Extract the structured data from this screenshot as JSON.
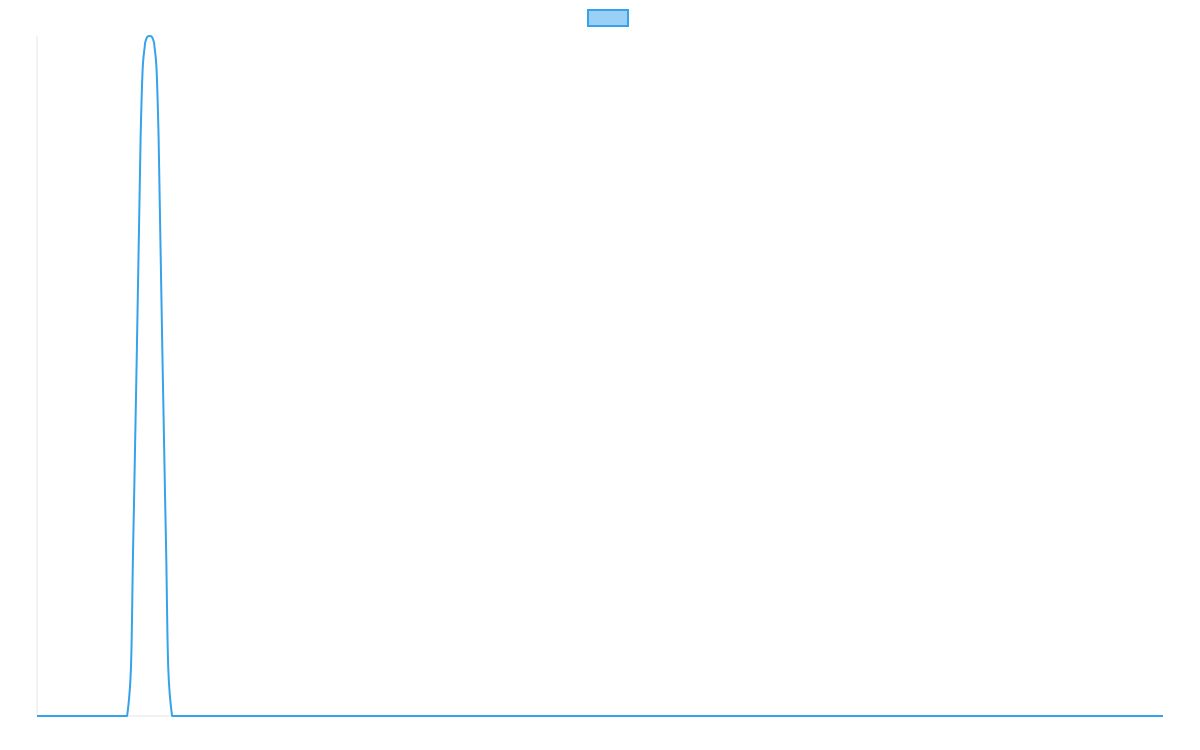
{
  "chart_data": {
    "type": "line",
    "title": "",
    "xlabel": "",
    "ylabel": "",
    "legend": {
      "placement": "top-center",
      "entries": [
        {
          "label": "",
          "color": "#36a2eb",
          "fill": "#9ad0f5"
        }
      ]
    },
    "grid": false,
    "xlim": [
      0,
      50
    ],
    "ylim": [
      0,
      1
    ],
    "series": [
      {
        "color": "#36a2eb",
        "x": [
          0,
          1,
          2,
          3,
          4,
          4.3,
          4.6,
          4.8,
          5.0,
          5.2,
          5.4,
          5.7,
          6.0,
          7,
          10,
          20,
          30,
          40,
          50
        ],
        "values": [
          0,
          0,
          0,
          0,
          0,
          0.3,
          0.85,
          0.99,
          1.0,
          0.99,
          0.85,
          0.3,
          0,
          0,
          0,
          0,
          0,
          0,
          0
        ]
      }
    ]
  }
}
